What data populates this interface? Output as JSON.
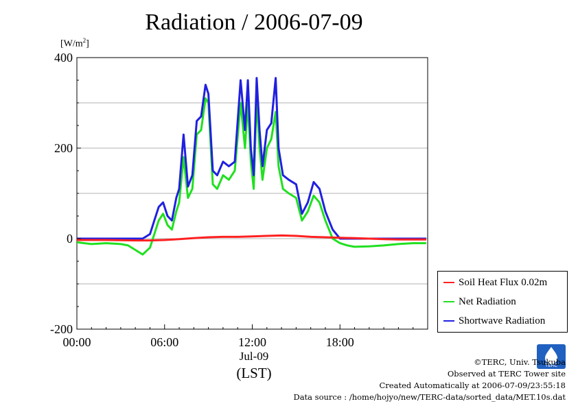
{
  "chart_data": {
    "type": "line",
    "title": "Radiation / 2006-07-09",
    "ylabel_unit": "[W/m",
    "ylabel_unit_sup": "2",
    "ylabel_unit_close": "]",
    "ylim": [
      -200,
      400
    ],
    "yticks": [
      "400",
      "200",
      "0",
      "-200"
    ],
    "yticks_values": [
      400,
      200,
      0,
      -200
    ],
    "xlim": [
      0,
      24
    ],
    "xticks": [
      "00:00",
      "06:00",
      "12:00",
      "18:00"
    ],
    "xticks_values": [
      0,
      6,
      12,
      18
    ],
    "xlabel_date": "Jul-09",
    "xlabel_zone": "(LST)",
    "grid": true,
    "legend_position": "right",
    "series": [
      {
        "name": "Soil Heat Flux 0.02m",
        "color": "#ff2020",
        "x": [
          0,
          2,
          4,
          5,
          6,
          7,
          8,
          9,
          10,
          11,
          12,
          13,
          14,
          15,
          16,
          17,
          18,
          19,
          20,
          21,
          22,
          23,
          23.9
        ],
        "y": [
          -3,
          -3,
          -4,
          -4,
          -3,
          -1,
          1,
          3,
          4,
          4,
          5,
          6,
          7,
          6,
          4,
          3,
          2,
          1,
          0,
          -1,
          -2,
          -2,
          -2
        ]
      },
      {
        "name": "Net Radiation",
        "color": "#20e020",
        "x": [
          0,
          0.5,
          1,
          2,
          3,
          3.5,
          4,
          4.5,
          5,
          5.3,
          5.6,
          5.9,
          6.2,
          6.5,
          6.8,
          7,
          7.3,
          7.6,
          7.9,
          8.2,
          8.5,
          8.8,
          9,
          9.3,
          9.6,
          10,
          10.4,
          10.8,
          11.2,
          11.5,
          11.7,
          11.9,
          12.1,
          12.3,
          12.5,
          12.7,
          13,
          13.3,
          13.6,
          13.8,
          14.1,
          14.5,
          15,
          15.4,
          15.8,
          16.2,
          16.6,
          17,
          17.5,
          18,
          18.5,
          19,
          20,
          21,
          22,
          23,
          23.9
        ],
        "y": [
          -8,
          -10,
          -12,
          -10,
          -12,
          -15,
          -25,
          -35,
          -20,
          10,
          40,
          55,
          30,
          20,
          60,
          80,
          180,
          90,
          110,
          230,
          240,
          310,
          300,
          120,
          110,
          140,
          130,
          150,
          300,
          200,
          300,
          170,
          110,
          310,
          200,
          130,
          200,
          220,
          280,
          160,
          110,
          100,
          90,
          40,
          60,
          95,
          80,
          40,
          0,
          -10,
          -15,
          -18,
          -17,
          -15,
          -12,
          -10,
          -10
        ]
      },
      {
        "name": "Shortwave Radiation",
        "color": "#2020e0",
        "x": [
          0,
          1,
          2,
          3,
          3.5,
          4,
          4.5,
          5,
          5.3,
          5.6,
          5.9,
          6.2,
          6.5,
          6.8,
          7,
          7.3,
          7.6,
          7.9,
          8.2,
          8.5,
          8.8,
          9,
          9.3,
          9.6,
          10,
          10.4,
          10.8,
          11.2,
          11.5,
          11.7,
          11.9,
          12.1,
          12.3,
          12.5,
          12.7,
          13,
          13.3,
          13.6,
          13.8,
          14.1,
          14.5,
          15,
          15.4,
          15.8,
          16.2,
          16.6,
          17,
          17.5,
          18,
          18.5,
          19,
          20,
          21,
          22,
          23,
          23.9
        ],
        "y": [
          0,
          0,
          0,
          0,
          0,
          0,
          0,
          10,
          40,
          70,
          80,
          50,
          40,
          90,
          110,
          230,
          115,
          140,
          260,
          270,
          340,
          320,
          150,
          140,
          170,
          160,
          170,
          350,
          240,
          350,
          200,
          140,
          355,
          240,
          160,
          240,
          255,
          355,
          200,
          140,
          130,
          120,
          55,
          80,
          125,
          110,
          60,
          20,
          0,
          0,
          0,
          0,
          0,
          0,
          0,
          0
        ]
      }
    ]
  },
  "credits": {
    "copyright": "©TERC, Univ. Tsukuba",
    "site": "Observed at TERC Tower site",
    "created": "Created Automatically at 2006-07-09/23:55:18",
    "source": "Data source : /home/hojyo/new/TERC-data/sorted_data/MET.10s.dat"
  },
  "logo": {
    "text": "TERC",
    "color": "#2060c0"
  }
}
